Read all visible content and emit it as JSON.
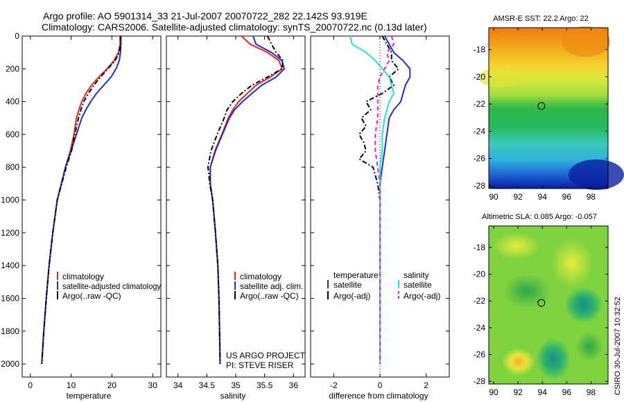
{
  "header": {
    "line1": "Argo profile: AO 5901314_33 21-Jul-2007 20070722_282 22.142S 93.919E",
    "line2": "Climatology: CARS2006. Satellite-adjusted climatology: synTS_20070722.nc (0.13d later)"
  },
  "colors": {
    "climatology": "#e8251f",
    "satellite": "#1f2bd6",
    "argo": "#000000",
    "sat_salinity": "#20e0e8",
    "argo_salinity": "#e020e0"
  },
  "chart_data": [
    {
      "id": "temperature",
      "type": "line",
      "xlabel": "temperature",
      "ylabel": "",
      "xlim": [
        -2,
        32
      ],
      "ylim": [
        2080,
        0
      ],
      "xticks": [
        0,
        10,
        20,
        30
      ],
      "yticks": [
        0,
        200,
        400,
        600,
        800,
        1000,
        1200,
        1400,
        1600,
        1800,
        2000
      ],
      "legend": [
        "climatology",
        "satellite-adjusted climatology",
        "Argo(..raw -QC)"
      ],
      "legend_position": "lower-right",
      "series": [
        {
          "name": "climatology",
          "color": "#e8251f",
          "style": "solid",
          "points": [
            [
              22.0,
              0
            ],
            [
              22.0,
              50
            ],
            [
              21.6,
              100
            ],
            [
              20.5,
              150
            ],
            [
              18.8,
              200
            ],
            [
              16.8,
              250
            ],
            [
              15.0,
              300
            ],
            [
              13.6,
              350
            ],
            [
              12.6,
              400
            ],
            [
              11.9,
              450
            ],
            [
              11.3,
              500
            ],
            [
              10.7,
              600
            ],
            [
              9.8,
              700
            ],
            [
              8.6,
              800
            ],
            [
              7.6,
              900
            ],
            [
              6.6,
              1000
            ],
            [
              5.5,
              1200
            ],
            [
              4.6,
              1400
            ],
            [
              3.9,
              1600
            ],
            [
              3.3,
              1800
            ],
            [
              2.8,
              2000
            ]
          ]
        },
        {
          "name": "satellite-adjusted climatology",
          "color": "#1f2bd6",
          "style": "solid",
          "points": [
            [
              22.2,
              0
            ],
            [
              22.2,
              50
            ],
            [
              22.1,
              100
            ],
            [
              21.8,
              150
            ],
            [
              21.0,
              200
            ],
            [
              19.8,
              250
            ],
            [
              18.0,
              300
            ],
            [
              16.2,
              350
            ],
            [
              14.8,
              400
            ],
            [
              13.6,
              450
            ],
            [
              12.6,
              500
            ],
            [
              11.3,
              600
            ],
            [
              10.0,
              700
            ],
            [
              8.6,
              800
            ],
            [
              7.6,
              900
            ],
            [
              6.6,
              1000
            ],
            [
              5.5,
              1200
            ],
            [
              4.6,
              1400
            ],
            [
              3.9,
              1600
            ],
            [
              3.3,
              1800
            ],
            [
              2.8,
              2000
            ]
          ]
        },
        {
          "name": "Argo(..raw -QC)",
          "color": "#000000",
          "style": "dashdot",
          "points": [
            [
              22.1,
              0
            ],
            [
              22.1,
              50
            ],
            [
              21.8,
              100
            ],
            [
              20.8,
              150
            ],
            [
              19.0,
              200
            ],
            [
              17.2,
              250
            ],
            [
              15.6,
              300
            ],
            [
              14.2,
              350
            ],
            [
              13.1,
              400
            ],
            [
              12.4,
              450
            ],
            [
              11.8,
              500
            ],
            [
              10.9,
              600
            ],
            [
              10.1,
              700
            ],
            [
              8.8,
              800
            ],
            [
              7.7,
              900
            ],
            [
              6.6,
              1000
            ],
            [
              5.5,
              1200
            ],
            [
              4.6,
              1400
            ],
            [
              3.9,
              1600
            ],
            [
              3.3,
              1800
            ],
            [
              2.8,
              2000
            ]
          ]
        }
      ]
    },
    {
      "id": "salinity",
      "type": "line",
      "xlabel": "salinity",
      "ylabel": "",
      "xlim": [
        33.8,
        36.2
      ],
      "ylim": [
        2080,
        0
      ],
      "xticks": [
        34,
        34.5,
        35,
        35.5,
        36
      ],
      "yticks": [
        0,
        200,
        400,
        600,
        800,
        1000,
        1200,
        1400,
        1600,
        1800,
        2000
      ],
      "legend": [
        "climatology",
        "satellite adj. clim.",
        "Argo(..raw -QC)"
      ],
      "legend_position": "lower-right",
      "annotation": [
        "US ARGO PROJECT",
        "PI: STEVE RISER"
      ],
      "series": [
        {
          "name": "climatology",
          "color": "#e8251f",
          "style": "solid",
          "points": [
            [
              35.1,
              0
            ],
            [
              35.25,
              50
            ],
            [
              35.55,
              100
            ],
            [
              35.75,
              150
            ],
            [
              35.8,
              200
            ],
            [
              35.6,
              250
            ],
            [
              35.35,
              300
            ],
            [
              35.2,
              350
            ],
            [
              35.05,
              400
            ],
            [
              34.95,
              450
            ],
            [
              34.87,
              500
            ],
            [
              34.76,
              600
            ],
            [
              34.64,
              700
            ],
            [
              34.56,
              800
            ],
            [
              34.56,
              900
            ],
            [
              34.6,
              1000
            ],
            [
              34.65,
              1200
            ],
            [
              34.69,
              1400
            ],
            [
              34.71,
              1600
            ],
            [
              34.72,
              1800
            ],
            [
              34.73,
              2000
            ]
          ]
        },
        {
          "name": "satellite adj. clim.",
          "color": "#1f2bd6",
          "style": "solid",
          "points": [
            [
              35.3,
              0
            ],
            [
              35.35,
              50
            ],
            [
              35.62,
              100
            ],
            [
              35.8,
              150
            ],
            [
              35.84,
              200
            ],
            [
              35.7,
              250
            ],
            [
              35.45,
              300
            ],
            [
              35.28,
              350
            ],
            [
              35.12,
              400
            ],
            [
              34.98,
              450
            ],
            [
              34.89,
              500
            ],
            [
              34.77,
              600
            ],
            [
              34.65,
              700
            ],
            [
              34.56,
              800
            ],
            [
              34.56,
              900
            ],
            [
              34.6,
              1000
            ],
            [
              34.65,
              1200
            ],
            [
              34.69,
              1400
            ],
            [
              34.71,
              1600
            ],
            [
              34.72,
              1800
            ],
            [
              34.73,
              2000
            ]
          ]
        },
        {
          "name": "Argo(..raw -QC)",
          "color": "#000000",
          "style": "dashdot",
          "points": [
            [
              35.55,
              0
            ],
            [
              35.62,
              50
            ],
            [
              35.7,
              100
            ],
            [
              35.82,
              150
            ],
            [
              35.8,
              200
            ],
            [
              35.55,
              250
            ],
            [
              35.28,
              300
            ],
            [
              35.1,
              350
            ],
            [
              34.95,
              400
            ],
            [
              34.85,
              450
            ],
            [
              34.8,
              500
            ],
            [
              34.68,
              600
            ],
            [
              34.57,
              700
            ],
            [
              34.52,
              800
            ],
            [
              34.55,
              900
            ],
            [
              34.6,
              1000
            ],
            [
              34.65,
              1200
            ],
            [
              34.69,
              1400
            ],
            [
              34.71,
              1600
            ],
            [
              34.72,
              1800
            ],
            [
              34.73,
              2000
            ]
          ]
        }
      ]
    },
    {
      "id": "difference",
      "type": "line",
      "xlabel": "difference from climatology",
      "ylabel": "",
      "xlim": [
        -3,
        3
      ],
      "ylim": [
        2080,
        0
      ],
      "xticks": [
        -2,
        0,
        2
      ],
      "yticks": [
        0,
        200,
        400,
        600,
        800,
        1000,
        1200,
        1400,
        1600,
        1800,
        2000
      ],
      "legend_headers": [
        "temperature",
        "salinity"
      ],
      "legend": [
        "satellite",
        "Argo(-adj)",
        "satellite",
        "Argo(-adj)"
      ],
      "legend_position": "lower-right",
      "series": [
        {
          "name": "temperature satellite",
          "color": "#1f2bd6",
          "style": "solid",
          "points": [
            [
              0.2,
              0
            ],
            [
              0.4,
              50
            ],
            [
              0.6,
              100
            ],
            [
              1.0,
              150
            ],
            [
              1.3,
              200
            ],
            [
              1.3,
              250
            ],
            [
              1.1,
              300
            ],
            [
              1.0,
              350
            ],
            [
              0.9,
              400
            ],
            [
              0.6,
              450
            ],
            [
              0.4,
              500
            ],
            [
              0.3,
              600
            ],
            [
              0.2,
              700
            ],
            [
              0.1,
              800
            ],
            [
              0.0,
              900
            ],
            [
              0.0,
              1000
            ],
            [
              0.0,
              1200
            ],
            [
              0.0,
              1400
            ],
            [
              0.0,
              1600
            ],
            [
              0.0,
              1800
            ],
            [
              0.0,
              2000
            ]
          ]
        },
        {
          "name": "temperature Argo(-adj)",
          "color": "#000000",
          "style": "dashdot",
          "points": [
            [
              0.1,
              0
            ],
            [
              0.3,
              50
            ],
            [
              0.5,
              100
            ],
            [
              0.5,
              150
            ],
            [
              0.8,
              200
            ],
            [
              0.4,
              250
            ],
            [
              0.6,
              300
            ],
            [
              0.1,
              350
            ],
            [
              -0.6,
              400
            ],
            [
              -0.4,
              450
            ],
            [
              -0.8,
              500
            ],
            [
              -0.6,
              550
            ],
            [
              -0.9,
              600
            ],
            [
              -0.7,
              650
            ],
            [
              -0.6,
              700
            ],
            [
              -0.9,
              750
            ],
            [
              -0.3,
              800
            ],
            [
              -0.1,
              900
            ],
            [
              0.0,
              1000
            ],
            [
              0.0,
              1200
            ],
            [
              0.0,
              1400
            ],
            [
              0.0,
              1600
            ],
            [
              0.0,
              1800
            ],
            [
              0.0,
              2000
            ]
          ]
        },
        {
          "name": "salinity satellite",
          "color": "#20e0e8",
          "style": "solid",
          "points": [
            [
              -1.3,
              0
            ],
            [
              -1.2,
              50
            ],
            [
              -0.6,
              100
            ],
            [
              -0.2,
              150
            ],
            [
              0.1,
              200
            ],
            [
              0.4,
              250
            ],
            [
              0.5,
              300
            ],
            [
              0.6,
              350
            ],
            [
              0.4,
              400
            ],
            [
              0.3,
              450
            ],
            [
              0.2,
              500
            ],
            [
              0.1,
              600
            ],
            [
              0.1,
              700
            ],
            [
              0.0,
              800
            ],
            [
              0.0,
              900
            ],
            [
              0.0,
              1000
            ],
            [
              0.0,
              1200
            ],
            [
              0.0,
              1400
            ],
            [
              0.0,
              1600
            ],
            [
              0.0,
              1800
            ],
            [
              0.0,
              2000
            ]
          ]
        },
        {
          "name": "salinity Argo(-adj)",
          "color": "#e020e0",
          "style": "dashed",
          "points": [
            [
              0.5,
              0
            ],
            [
              0.6,
              50
            ],
            [
              0.3,
              100
            ],
            [
              0.4,
              150
            ],
            [
              0.2,
              200
            ],
            [
              0.0,
              250
            ],
            [
              -0.1,
              300
            ],
            [
              -0.1,
              400
            ],
            [
              -0.1,
              500
            ],
            [
              -0.2,
              600
            ],
            [
              -0.2,
              700
            ],
            [
              -0.1,
              800
            ],
            [
              0.0,
              900
            ],
            [
              0.0,
              1000
            ],
            [
              0.0,
              1200
            ],
            [
              0.0,
              1400
            ],
            [
              0.0,
              1600
            ],
            [
              0.0,
              1800
            ],
            [
              0.0,
              2000
            ]
          ]
        }
      ]
    },
    {
      "id": "sst_map",
      "type": "heatmap",
      "title": "AMSR-E SST: 22.2 Argo: 22",
      "xlim": [
        89.6,
        99.4
      ],
      "ylim": [
        -28.2,
        -16.4
      ],
      "xticks": [
        90,
        92,
        94,
        96,
        98
      ],
      "yticks": [
        -18,
        -20,
        -22,
        -24,
        -26,
        -28
      ],
      "marker": {
        "lon": 93.919,
        "lat": -22.142
      }
    },
    {
      "id": "sla_map",
      "type": "heatmap",
      "title": "Altimetric SLA: 0.085 Argo: -0.057",
      "xlim": [
        89.6,
        99.4
      ],
      "ylim": [
        -28.2,
        -16.4
      ],
      "xticks": [
        90,
        92,
        94,
        96,
        98
      ],
      "yticks": [
        -18,
        -20,
        -22,
        -24,
        -26,
        -28
      ],
      "marker": {
        "lon": 93.919,
        "lat": -22.142
      }
    }
  ],
  "side_label": "CSIRO 30-Jul-2007 10:32:52"
}
